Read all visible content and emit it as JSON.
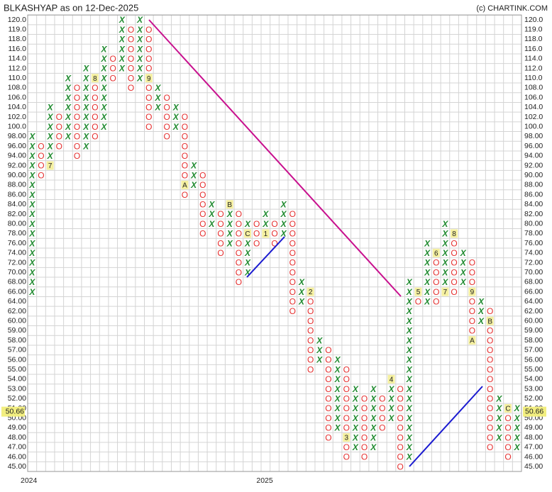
{
  "chart_data": {
    "type": "point-and-figure",
    "title": "BLKASHYAP as on 12-Dec-2025",
    "source": "(c) CHARTINK.COM",
    "yticks": [
      {
        "value": 120,
        "label": "120.0"
      },
      {
        "value": 119,
        "label": "119.0"
      },
      {
        "value": 118,
        "label": "118.0"
      },
      {
        "value": 116,
        "label": "116.0"
      },
      {
        "value": 114,
        "label": "114.0"
      },
      {
        "value": 112,
        "label": "112.0"
      },
      {
        "value": 110,
        "label": "110.0"
      },
      {
        "value": 108,
        "label": "108.0"
      },
      {
        "value": 106,
        "label": "106.0"
      },
      {
        "value": 104,
        "label": "104.0"
      },
      {
        "value": 102,
        "label": "102.0"
      },
      {
        "value": 100,
        "label": "100.0"
      },
      {
        "value": 98,
        "label": "98.00"
      },
      {
        "value": 96,
        "label": "96.00"
      },
      {
        "value": 94,
        "label": "94.00"
      },
      {
        "value": 92,
        "label": "92.00"
      },
      {
        "value": 90,
        "label": "90.00"
      },
      {
        "value": 88,
        "label": "88.00"
      },
      {
        "value": 86,
        "label": "86.00"
      },
      {
        "value": 84,
        "label": "84.00"
      },
      {
        "value": 82,
        "label": "82.00"
      },
      {
        "value": 80,
        "label": "80.00"
      },
      {
        "value": 78,
        "label": "78.00"
      },
      {
        "value": 76,
        "label": "76.00"
      },
      {
        "value": 74,
        "label": "74.00"
      },
      {
        "value": 72,
        "label": "72.00"
      },
      {
        "value": 70,
        "label": "70.00"
      },
      {
        "value": 68,
        "label": "68.00"
      },
      {
        "value": 66,
        "label": "66.00"
      },
      {
        "value": 64,
        "label": "64.00"
      },
      {
        "value": 62,
        "label": "62.00"
      },
      {
        "value": 60,
        "label": "60.00"
      },
      {
        "value": 59,
        "label": "59.00"
      },
      {
        "value": 58,
        "label": "58.00"
      },
      {
        "value": 57,
        "label": "57.00"
      },
      {
        "value": 56,
        "label": "56.00"
      },
      {
        "value": 55,
        "label": "55.00"
      },
      {
        "value": 54,
        "label": "54.00"
      },
      {
        "value": 53,
        "label": "53.00"
      },
      {
        "value": 52,
        "label": "52.00"
      },
      {
        "value": 51,
        "label": "51.00"
      },
      {
        "value": 50,
        "label": "50.00"
      },
      {
        "value": 49,
        "label": "49.00"
      },
      {
        "value": 48,
        "label": "48.00"
      },
      {
        "value": 47,
        "label": "47.00"
      },
      {
        "value": 46,
        "label": "46.00"
      },
      {
        "value": 45,
        "label": "45.00"
      }
    ],
    "last_price": 50.66,
    "year_labels": [
      {
        "label": "2024",
        "column": 0
      },
      {
        "label": "2025",
        "column": 25
      }
    ],
    "x_color": "#1e8a2e",
    "o_color": "#e53030",
    "marker_color": "#f5f0a0",
    "columns": [
      {
        "kind": "X",
        "from": 66,
        "to": 98
      },
      {
        "kind": "O",
        "from": 96,
        "to": 90
      },
      {
        "kind": "X",
        "from": 92,
        "to": 104,
        "markers": [
          {
            "value": 92,
            "label": "7"
          }
        ]
      },
      {
        "kind": "O",
        "from": 102,
        "to": 96
      },
      {
        "kind": "X",
        "from": 98,
        "to": 110
      },
      {
        "kind": "O",
        "from": 108,
        "to": 94
      },
      {
        "kind": "X",
        "from": 96,
        "to": 112
      },
      {
        "kind": "O",
        "from": 110,
        "to": 98,
        "markers": [
          {
            "value": 110,
            "label": "8"
          }
        ]
      },
      {
        "kind": "X",
        "from": 100,
        "to": 116
      },
      {
        "kind": "O",
        "from": 114,
        "to": 110
      },
      {
        "kind": "X",
        "from": 112,
        "to": 120
      },
      {
        "kind": "O",
        "from": 119,
        "to": 108
      },
      {
        "kind": "X",
        "from": 110,
        "to": 120
      },
      {
        "kind": "O",
        "from": 119,
        "to": 100,
        "markers": [
          {
            "value": 110,
            "label": "9"
          }
        ]
      },
      {
        "kind": "X",
        "from": 104,
        "to": 108
      },
      {
        "kind": "O",
        "from": 106,
        "to": 98
      },
      {
        "kind": "X",
        "from": 100,
        "to": 104
      },
      {
        "kind": "O",
        "from": 102,
        "to": 86,
        "markers": [
          {
            "value": 88,
            "label": "A"
          }
        ]
      },
      {
        "kind": "X",
        "from": 88,
        "to": 92
      },
      {
        "kind": "O",
        "from": 90,
        "to": 78
      },
      {
        "kind": "X",
        "from": 80,
        "to": 84
      },
      {
        "kind": "O",
        "from": 82,
        "to": 74
      },
      {
        "kind": "X",
        "from": 76,
        "to": 84,
        "markers": [
          {
            "value": 84,
            "label": "B"
          }
        ]
      },
      {
        "kind": "O",
        "from": 82,
        "to": 68
      },
      {
        "kind": "X",
        "from": 70,
        "to": 80,
        "markers": [
          {
            "value": 78,
            "label": "C"
          }
        ]
      },
      {
        "kind": "O",
        "from": 80,
        "to": 76
      },
      {
        "kind": "X",
        "from": 78,
        "to": 82,
        "markers": [
          {
            "value": 78,
            "label": "1"
          }
        ]
      },
      {
        "kind": "O",
        "from": 80,
        "to": 76
      },
      {
        "kind": "X",
        "from": 78,
        "to": 84
      },
      {
        "kind": "O",
        "from": 82,
        "to": 62
      },
      {
        "kind": "X",
        "from": 64,
        "to": 68
      },
      {
        "kind": "O",
        "from": 66,
        "to": 55,
        "markers": [
          {
            "value": 66,
            "label": "2"
          }
        ]
      },
      {
        "kind": "X",
        "from": 56,
        "to": 58
      },
      {
        "kind": "O",
        "from": 57,
        "to": 48
      },
      {
        "kind": "X",
        "from": 49,
        "to": 56
      },
      {
        "kind": "O",
        "from": 55,
        "to": 46,
        "markers": [
          {
            "value": 48,
            "label": "3"
          }
        ]
      },
      {
        "kind": "X",
        "from": 47,
        "to": 53
      },
      {
        "kind": "O",
        "from": 52,
        "to": 46
      },
      {
        "kind": "X",
        "from": 47,
        "to": 53
      },
      {
        "kind": "O",
        "from": 52,
        "to": 49
      },
      {
        "kind": "X",
        "from": 50,
        "to": 54,
        "markers": [
          {
            "value": 54,
            "label": "4"
          }
        ]
      },
      {
        "kind": "O",
        "from": 53,
        "to": 45
      },
      {
        "kind": "X",
        "from": 46,
        "to": 68
      },
      {
        "kind": "O",
        "from": 66,
        "to": 64,
        "markers": [
          {
            "value": 66,
            "label": "5"
          }
        ]
      },
      {
        "kind": "X",
        "from": 64,
        "to": 76
      },
      {
        "kind": "O",
        "from": 74,
        "to": 64,
        "markers": [
          {
            "value": 74,
            "label": "6"
          }
        ]
      },
      {
        "kind": "X",
        "from": 66,
        "to": 80,
        "markers": [
          {
            "value": 66,
            "label": "7"
          }
        ]
      },
      {
        "kind": "O",
        "from": 78,
        "to": 66,
        "markers": [
          {
            "value": 78,
            "label": "8"
          }
        ]
      },
      {
        "kind": "X",
        "from": 68,
        "to": 74
      },
      {
        "kind": "O",
        "from": 72,
        "to": 58,
        "markers": [
          {
            "value": 66,
            "label": "9"
          },
          {
            "value": 58,
            "label": "A"
          }
        ]
      },
      {
        "kind": "X",
        "from": 60,
        "to": 64
      },
      {
        "kind": "O",
        "from": 62,
        "to": 47,
        "markers": [
          {
            "value": 60,
            "label": "B"
          }
        ]
      },
      {
        "kind": "X",
        "from": 48,
        "to": 52
      },
      {
        "kind": "O",
        "from": 51,
        "to": 46,
        "markers": [
          {
            "value": 51,
            "label": "C"
          }
        ]
      },
      {
        "kind": "X",
        "from": 47,
        "to": 51
      }
    ]
  }
}
